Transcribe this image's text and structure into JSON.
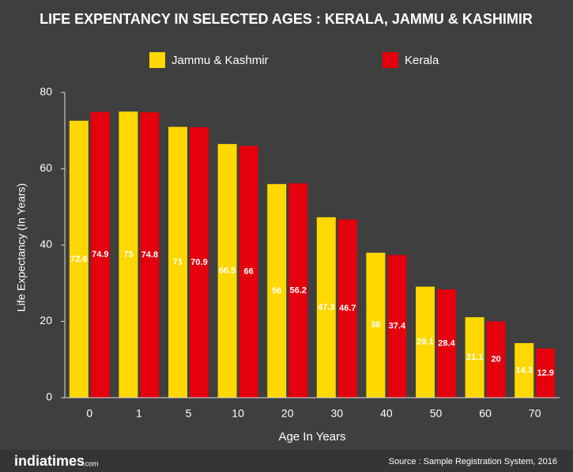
{
  "chart_data": {
    "type": "bar",
    "title": "LIFE EXPENTANCY IN SELECTED AGES : KERALA, JAMMU & KASHIMIR",
    "x_label": "Age In Years",
    "y_label": "Life Expectancy (In Years)",
    "categories": [
      "0",
      "1",
      "5",
      "10",
      "20",
      "30",
      "40",
      "50",
      "60",
      "70"
    ],
    "series": [
      {
        "name": "Jammu & Kashmir",
        "color": "#ffd800",
        "values": [
          72.6,
          75,
          71,
          66.5,
          56,
          47.3,
          38,
          29.1,
          21.1,
          14.3
        ]
      },
      {
        "name": "Kerala",
        "color": "#e4000c",
        "values": [
          74.9,
          74.8,
          70.9,
          66,
          56.2,
          46.7,
          37.4,
          28.4,
          20,
          12.9
        ]
      }
    ],
    "ylim": [
      0,
      80
    ],
    "yticks": [
      0,
      20,
      40,
      60,
      80
    ],
    "brand": "indiatimes",
    "brand_suffix": ".com",
    "source": "Source : Sample Registration System, 2016"
  }
}
